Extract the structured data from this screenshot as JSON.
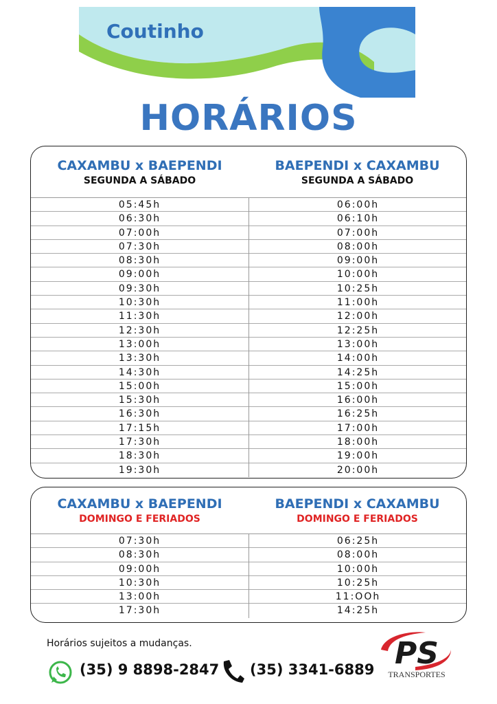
{
  "logo": {
    "name": "Coutinho"
  },
  "title": "HORÁRIOS",
  "schedules": [
    {
      "columns": [
        {
          "route": "CAXAMBU x BAEPENDI",
          "days": "SEGUNDA A SÁBADO",
          "times": [
            "05:45h",
            "06:30h",
            "07:00h",
            "07:30h",
            "08:30h",
            "09:00h",
            "09:30h",
            "10:30h",
            "11:30h",
            "12:30h",
            "13:00h",
            "13:30h",
            "14:30h",
            "15:00h",
            "15:30h",
            "16:30h",
            "17:15h",
            "17:30h",
            "18:30h",
            "19:30h"
          ]
        },
        {
          "route": "BAEPENDI x CAXAMBU",
          "days": "SEGUNDA A SÁBADO",
          "times": [
            "06:00h",
            "06:10h",
            "07:00h",
            "08:00h",
            "09:00h",
            "10:00h",
            "10:25h",
            "11:00h",
            "12:00h",
            "12:25h",
            "13:00h",
            "14:00h",
            "14:25h",
            "15:00h",
            "16:00h",
            "16:25h",
            "17:00h",
            "18:00h",
            "19:00h",
            "20:00h"
          ]
        }
      ]
    },
    {
      "columns": [
        {
          "route": "CAXAMBU x BAEPENDI",
          "days": "DOMINGO E FERIADOS",
          "times": [
            "07:30h",
            "08:30h",
            "09:00h",
            "10:30h",
            "13:00h",
            "17:30h"
          ]
        },
        {
          "route": "BAEPENDI x CAXAMBU",
          "days": "DOMINGO E FERIADOS",
          "times": [
            "06:25h",
            "08:00h",
            "10:00h",
            "10:25h",
            "11:OOh",
            "14:25h"
          ]
        }
      ]
    }
  ],
  "footer": {
    "note": "Horários sujeitos a mudanças.",
    "whatsapp": "(35) 9 8898-2847",
    "phone": "(35) 3341-6889",
    "company": {
      "name": "PS",
      "tagline": "TRANSPORTES"
    }
  }
}
